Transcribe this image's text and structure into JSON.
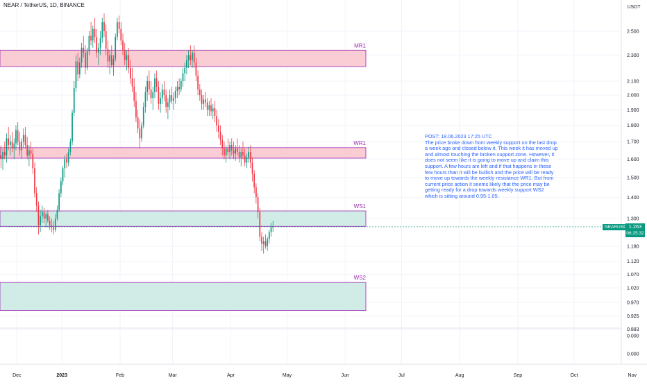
{
  "header": {
    "symbol_title": "NEAR / TetherUS, 1D, BINANCE",
    "currency": "USDT"
  },
  "price_tag": {
    "symbol": "NEARUSDT",
    "price": "1.263",
    "countdown": "06:25:32"
  },
  "post_note": "POST: 18.06.2023 17:25 UTC\nThe price broke down from weekly support on the last drop a week ago and closed below it. This week it has moved up and almost touching the broken support zone. However, it does not seem like it is going to move up and claim this support. A few hours are left and if that happens in these few hours than it will be bullish and the price will be ready to move up towards the weekly resistance WR1. But from current price action it seems likely that the price may be getting ready for a drop towards weekly support WS2 which is sitting around 0.95-1.05.",
  "colors": {
    "up": "#089981",
    "down": "#f23645",
    "resistance_fill": "#f9cdd3",
    "support_fill": "#d1ece6",
    "zone_border": "#9c27b0",
    "note_text": "#2962ff"
  },
  "chart_data": {
    "type": "candlestick",
    "title": "NEAR / TetherUS, 1D, BINANCE",
    "y_scale": "log",
    "price_axis": {
      "label": "USDT",
      "ticks": [
        "2.500",
        "2.300",
        "2.100",
        "2.000",
        "1.900",
        "1.800",
        "1.700",
        "1.600",
        "1.500",
        "1.400",
        "1.300",
        "1.180",
        "1.120",
        "1.070",
        "1.020",
        "0.970",
        "0.925",
        "0.883"
      ]
    },
    "volume_axis_ticks": [
      "0.000",
      "0.000"
    ],
    "x_ticks": [
      "Dec",
      "2023",
      "Feb",
      "Mar",
      "Apr",
      "May",
      "Jun",
      "Jul",
      "Aug",
      "Sep",
      "Oct",
      "Nov",
      "Dec"
    ],
    "zones": [
      {
        "label": "MR1",
        "low": 2.21,
        "high": 2.34,
        "kind": "resistance"
      },
      {
        "label": "WR1",
        "low": 1.605,
        "high": 1.665,
        "kind": "resistance"
      },
      {
        "label": "WS1",
        "low": 1.265,
        "high": 1.335,
        "kind": "support"
      },
      {
        "label": "WS2",
        "low": 0.943,
        "high": 1.04,
        "kind": "support"
      }
    ],
    "last_price": 1.263,
    "candles_anchor_date": "2022-11-29",
    "candles": [
      [
        1.62,
        1.68,
        1.55,
        1.6
      ],
      [
        1.6,
        1.66,
        1.54,
        1.64
      ],
      [
        1.64,
        1.7,
        1.6,
        1.62
      ],
      [
        1.62,
        1.75,
        1.58,
        1.72
      ],
      [
        1.72,
        1.79,
        1.65,
        1.68
      ],
      [
        1.68,
        1.74,
        1.62,
        1.7
      ],
      [
        1.7,
        1.76,
        1.64,
        1.66
      ],
      [
        1.66,
        1.72,
        1.6,
        1.69
      ],
      [
        1.69,
        1.8,
        1.65,
        1.77
      ],
      [
        1.77,
        1.82,
        1.68,
        1.7
      ],
      [
        1.7,
        1.76,
        1.62,
        1.65
      ],
      [
        1.65,
        1.72,
        1.6,
        1.7
      ],
      [
        1.7,
        1.78,
        1.66,
        1.74
      ],
      [
        1.74,
        1.79,
        1.66,
        1.68
      ],
      [
        1.68,
        1.73,
        1.6,
        1.62
      ],
      [
        1.62,
        1.68,
        1.56,
        1.65
      ],
      [
        1.65,
        1.7,
        1.6,
        1.63
      ],
      [
        1.63,
        1.66,
        1.52,
        1.55
      ],
      [
        1.55,
        1.58,
        1.4,
        1.42
      ],
      [
        1.42,
        1.45,
        1.33,
        1.36
      ],
      [
        1.36,
        1.38,
        1.23,
        1.27
      ],
      [
        1.27,
        1.34,
        1.24,
        1.31
      ],
      [
        1.31,
        1.36,
        1.28,
        1.33
      ],
      [
        1.33,
        1.35,
        1.28,
        1.3
      ],
      [
        1.3,
        1.33,
        1.26,
        1.32
      ],
      [
        1.32,
        1.34,
        1.28,
        1.29
      ],
      [
        1.29,
        1.31,
        1.25,
        1.27
      ],
      [
        1.27,
        1.3,
        1.24,
        1.26
      ],
      [
        1.26,
        1.29,
        1.23,
        1.25
      ],
      [
        1.25,
        1.32,
        1.24,
        1.3
      ],
      [
        1.3,
        1.36,
        1.29,
        1.34
      ],
      [
        1.34,
        1.44,
        1.33,
        1.42
      ],
      [
        1.42,
        1.5,
        1.4,
        1.48
      ],
      [
        1.48,
        1.56,
        1.46,
        1.55
      ],
      [
        1.55,
        1.62,
        1.5,
        1.6
      ],
      [
        1.6,
        1.63,
        1.55,
        1.58
      ],
      [
        1.58,
        1.66,
        1.56,
        1.64
      ],
      [
        1.64,
        1.72,
        1.62,
        1.7
      ],
      [
        1.7,
        1.9,
        1.68,
        1.88
      ],
      [
        1.88,
        2.1,
        1.86,
        2.05
      ],
      [
        2.05,
        2.3,
        2.02,
        2.25
      ],
      [
        2.25,
        2.32,
        2.1,
        2.15
      ],
      [
        2.15,
        2.28,
        2.12,
        2.24
      ],
      [
        2.24,
        2.4,
        2.2,
        2.36
      ],
      [
        2.36,
        2.46,
        2.28,
        2.32
      ],
      [
        2.32,
        2.38,
        2.15,
        2.2
      ],
      [
        2.2,
        2.36,
        2.18,
        2.33
      ],
      [
        2.33,
        2.5,
        2.3,
        2.46
      ],
      [
        2.46,
        2.58,
        2.38,
        2.42
      ],
      [
        2.42,
        2.55,
        2.36,
        2.52
      ],
      [
        2.52,
        2.62,
        2.4,
        2.45
      ],
      [
        2.45,
        2.52,
        2.28,
        2.32
      ],
      [
        2.32,
        2.4,
        2.22,
        2.36
      ],
      [
        2.36,
        2.5,
        2.3,
        2.44
      ],
      [
        2.44,
        2.62,
        2.4,
        2.58
      ],
      [
        2.58,
        2.66,
        2.45,
        2.5
      ],
      [
        2.5,
        2.56,
        2.3,
        2.35
      ],
      [
        2.35,
        2.42,
        2.2,
        2.25
      ],
      [
        2.25,
        2.34,
        2.15,
        2.3
      ],
      [
        2.3,
        2.38,
        2.2,
        2.22
      ],
      [
        2.22,
        2.3,
        2.14,
        2.27
      ],
      [
        2.27,
        2.48,
        2.25,
        2.45
      ],
      [
        2.45,
        2.62,
        2.42,
        2.58
      ],
      [
        2.58,
        2.64,
        2.48,
        2.52
      ],
      [
        2.52,
        2.58,
        2.38,
        2.42
      ],
      [
        2.42,
        2.48,
        2.3,
        2.34
      ],
      [
        2.34,
        2.4,
        2.22,
        2.26
      ],
      [
        2.26,
        2.34,
        2.18,
        2.3
      ],
      [
        2.3,
        2.36,
        2.16,
        2.2
      ],
      [
        2.2,
        2.26,
        2.08,
        2.12
      ],
      [
        2.12,
        2.2,
        2.02,
        2.06
      ],
      [
        2.06,
        2.12,
        1.92,
        1.96
      ],
      [
        1.96,
        2.02,
        1.82,
        1.85
      ],
      [
        1.85,
        1.9,
        1.75,
        1.78
      ],
      [
        1.78,
        1.84,
        1.66,
        1.72
      ],
      [
        1.72,
        1.82,
        1.7,
        1.8
      ],
      [
        1.8,
        1.95,
        1.78,
        1.92
      ],
      [
        1.92,
        2.06,
        1.88,
        2.02
      ],
      [
        2.02,
        2.14,
        1.96,
        2.1
      ],
      [
        2.1,
        2.18,
        2.0,
        2.04
      ],
      [
        2.04,
        2.1,
        1.94,
        1.98
      ],
      [
        1.98,
        2.06,
        1.9,
        2.02
      ],
      [
        2.02,
        2.16,
        1.98,
        2.12
      ],
      [
        2.12,
        2.18,
        2.02,
        2.06
      ],
      [
        2.06,
        2.1,
        1.9,
        1.94
      ],
      [
        1.94,
        2.02,
        1.88,
        1.98
      ],
      [
        1.98,
        2.08,
        1.94,
        2.04
      ],
      [
        2.04,
        2.1,
        1.96,
        2.0
      ],
      [
        2.0,
        2.04,
        1.88,
        1.92
      ],
      [
        1.92,
        1.98,
        1.84,
        1.95
      ],
      [
        1.95,
        2.04,
        1.9,
        2.0
      ],
      [
        2.0,
        2.06,
        1.94,
        1.96
      ],
      [
        1.96,
        2.02,
        1.9,
        1.98
      ],
      [
        1.98,
        2.06,
        1.94,
        2.03
      ],
      [
        2.03,
        2.1,
        1.98,
        2.06
      ],
      [
        2.06,
        2.12,
        2.0,
        2.04
      ],
      [
        2.04,
        2.12,
        2.02,
        2.1
      ],
      [
        2.1,
        2.2,
        2.06,
        2.16
      ],
      [
        2.16,
        2.24,
        2.1,
        2.2
      ],
      [
        2.2,
        2.3,
        2.15,
        2.26
      ],
      [
        2.26,
        2.34,
        2.2,
        2.3
      ],
      [
        2.3,
        2.38,
        2.22,
        2.26
      ],
      [
        2.26,
        2.34,
        2.2,
        2.32
      ],
      [
        2.32,
        2.38,
        2.2,
        2.24
      ],
      [
        2.24,
        2.28,
        2.1,
        2.14
      ],
      [
        2.14,
        2.18,
        2.0,
        2.04
      ],
      [
        2.04,
        2.08,
        1.96,
        2.0
      ],
      [
        2.0,
        2.04,
        1.9,
        1.94
      ],
      [
        1.94,
        2.0,
        1.9,
        1.97
      ],
      [
        1.97,
        2.02,
        1.92,
        1.95
      ],
      [
        1.95,
        1.98,
        1.86,
        1.9
      ],
      [
        1.9,
        1.96,
        1.86,
        1.93
      ],
      [
        1.93,
        1.98,
        1.86,
        1.89
      ],
      [
        1.89,
        1.94,
        1.84,
        1.91
      ],
      [
        1.91,
        1.96,
        1.82,
        1.86
      ],
      [
        1.86,
        1.9,
        1.76,
        1.8
      ],
      [
        1.8,
        1.84,
        1.72,
        1.76
      ],
      [
        1.76,
        1.8,
        1.68,
        1.71
      ],
      [
        1.71,
        1.74,
        1.62,
        1.66
      ],
      [
        1.66,
        1.7,
        1.6,
        1.62
      ],
      [
        1.62,
        1.68,
        1.58,
        1.66
      ],
      [
        1.66,
        1.72,
        1.62,
        1.64
      ],
      [
        1.64,
        1.7,
        1.6,
        1.68
      ],
      [
        1.68,
        1.72,
        1.62,
        1.65
      ],
      [
        1.65,
        1.7,
        1.6,
        1.63
      ],
      [
        1.63,
        1.68,
        1.59,
        1.66
      ],
      [
        1.66,
        1.72,
        1.62,
        1.64
      ],
      [
        1.64,
        1.68,
        1.58,
        1.61
      ],
      [
        1.61,
        1.66,
        1.56,
        1.64
      ],
      [
        1.64,
        1.7,
        1.6,
        1.62
      ],
      [
        1.62,
        1.66,
        1.56,
        1.58
      ],
      [
        1.58,
        1.63,
        1.55,
        1.61
      ],
      [
        1.61,
        1.67,
        1.58,
        1.64
      ],
      [
        1.64,
        1.68,
        1.55,
        1.58
      ],
      [
        1.58,
        1.61,
        1.48,
        1.52
      ],
      [
        1.52,
        1.54,
        1.42,
        1.45
      ],
      [
        1.45,
        1.47,
        1.37,
        1.4
      ],
      [
        1.4,
        1.42,
        1.3,
        1.33
      ],
      [
        1.33,
        1.35,
        1.2,
        1.22
      ],
      [
        1.22,
        1.24,
        1.16,
        1.19
      ],
      [
        1.19,
        1.22,
        1.15,
        1.2
      ],
      [
        1.2,
        1.23,
        1.17,
        1.18
      ],
      [
        1.18,
        1.22,
        1.16,
        1.21
      ],
      [
        1.21,
        1.25,
        1.19,
        1.24
      ],
      [
        1.24,
        1.28,
        1.22,
        1.26
      ],
      [
        1.26,
        1.29,
        1.24,
        1.263
      ]
    ]
  }
}
